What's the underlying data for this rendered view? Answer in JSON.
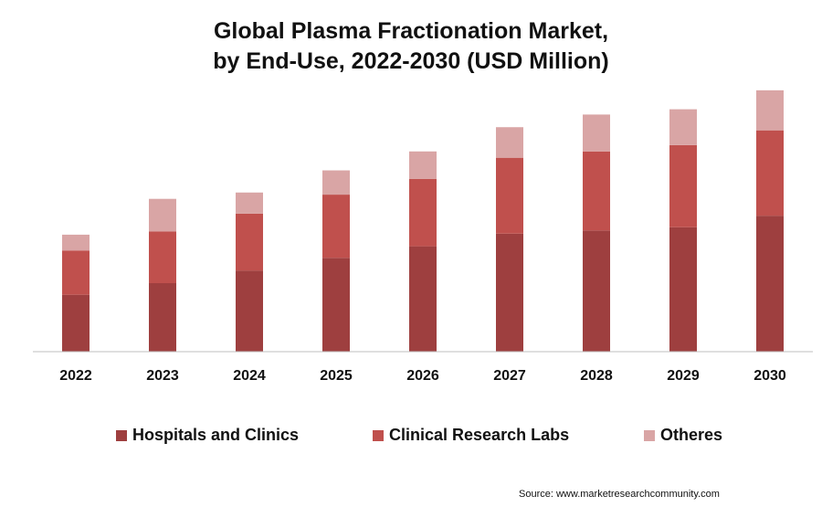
{
  "chart_data": {
    "type": "bar",
    "stacked": true,
    "title_line1": "Global Plasma Fractionation Market,",
    "title_line2": "by End-Use, 2022-2030 (USD Million)",
    "categories": [
      "2022",
      "2023",
      "2024",
      "2025",
      "2026",
      "2027",
      "2028",
      "2029",
      "2030"
    ],
    "series": [
      {
        "name": "Hospitals and Clinics",
        "color": "#9e3f3f",
        "values": [
          54,
          65,
          77,
          89,
          100,
          112,
          115,
          118,
          129
        ]
      },
      {
        "name": "Clinical Research Labs",
        "color": "#c0504d",
        "values": [
          42,
          49,
          54,
          60,
          64,
          72,
          75,
          78,
          81
        ]
      },
      {
        "name": "Otheres",
        "color": "#d9a5a5",
        "values": [
          15,
          31,
          20,
          23,
          26,
          29,
          35,
          34,
          38
        ]
      }
    ],
    "ylim": [
      0,
      260
    ],
    "grid": false,
    "legend_position": "bottom",
    "xlabel": "",
    "ylabel": ""
  },
  "source": "Source: www.marketresearchcommunity.com"
}
